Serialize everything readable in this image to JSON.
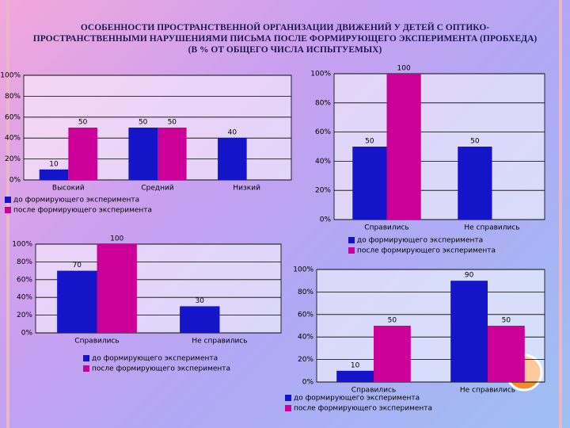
{
  "title": "ОСОБЕННОСТИ ПРОСТРАНСТВЕННОЙ ОРГАНИЗАЦИИ ДВИЖЕНИЙ У ДЕТЕЙ С ОПТИКО-ПРОСТРАНСТВЕННЫМИ НАРУШЕНИЯМИ ПИСЬМА ПОСЛЕ ФОРМИРУЮЩЕГО ЭКСПЕРИМЕНТА (ПРОБХЕДА)",
  "subtitle": "(В % ОТ ОБЩЕГО ЧИСЛА ИСПЫТУЕМЫХ)",
  "chart_data": [
    {
      "type": "bar",
      "categories": [
        "Высокий",
        "Средний",
        "Низкий"
      ],
      "series": [
        {
          "name": "до формирующего эксперимента",
          "color": "#1414c8",
          "values": [
            10,
            50,
            40
          ]
        },
        {
          "name": "после формирующего эксперимента",
          "color": "#cc0099",
          "values": [
            50,
            50,
            null
          ]
        }
      ],
      "ylim": [
        0,
        100
      ],
      "yticks": [
        {
          "value": 0,
          "label": "0%"
        },
        {
          "value": 20,
          "label": "20%"
        },
        {
          "value": 40,
          "label": "40%"
        },
        {
          "value": 60,
          "label": "60%"
        },
        {
          "value": 80,
          "label": "80%"
        },
        {
          "value": 100,
          "label": "100%"
        }
      ],
      "grid": true
    },
    {
      "type": "bar",
      "categories": [
        "Справились",
        "Не справились"
      ],
      "series": [
        {
          "name": "до формирующего эксперимента",
          "color": "#1414c8",
          "values": [
            50,
            50
          ]
        },
        {
          "name": "после формирующего эксперимента",
          "color": "#cc0099",
          "values": [
            100,
            null
          ]
        }
      ],
      "ylim": [
        0,
        100
      ],
      "yticks": [
        {
          "value": 0,
          "label": "0%"
        },
        {
          "value": 20,
          "label": "20%"
        },
        {
          "value": 40,
          "label": "40%"
        },
        {
          "value": 60,
          "label": "60%"
        },
        {
          "value": 80,
          "label": "80%"
        },
        {
          "value": 100,
          "label": "100%"
        }
      ],
      "grid": true
    },
    {
      "type": "bar",
      "categories": [
        "Справились",
        "Не справились"
      ],
      "series": [
        {
          "name": "до формирующего эксперимента",
          "color": "#1414c8",
          "values": [
            70,
            30
          ]
        },
        {
          "name": "после формирующего эксперимента",
          "color": "#cc0099",
          "values": [
            100,
            null
          ]
        }
      ],
      "ylim": [
        0,
        100
      ],
      "yticks": [
        {
          "value": 0,
          "label": "0%"
        },
        {
          "value": 20,
          "label": "20%"
        },
        {
          "value": 40,
          "label": "40%"
        },
        {
          "value": 60,
          "label": "60%"
        },
        {
          "value": 80,
          "label": "80%"
        },
        {
          "value": 100,
          "label": "100%"
        }
      ],
      "grid": true
    },
    {
      "type": "bar",
      "categories": [
        "Справились",
        "Не справились"
      ],
      "series": [
        {
          "name": "до формирующего эксперимента",
          "color": "#1414c8",
          "values": [
            10,
            90
          ]
        },
        {
          "name": "после формирующего эксперимента",
          "color": "#cc0099",
          "values": [
            50,
            50
          ]
        }
      ],
      "ylim": [
        0,
        100
      ],
      "yticks": [
        {
          "value": 0,
          "label": "0%"
        },
        {
          "value": 20,
          "label": "20%"
        },
        {
          "value": 40,
          "label": "40%"
        },
        {
          "value": 60,
          "label": "60%"
        },
        {
          "value": 80,
          "label": "80%"
        },
        {
          "value": 100,
          "label": "100%"
        }
      ],
      "grid": true
    }
  ]
}
